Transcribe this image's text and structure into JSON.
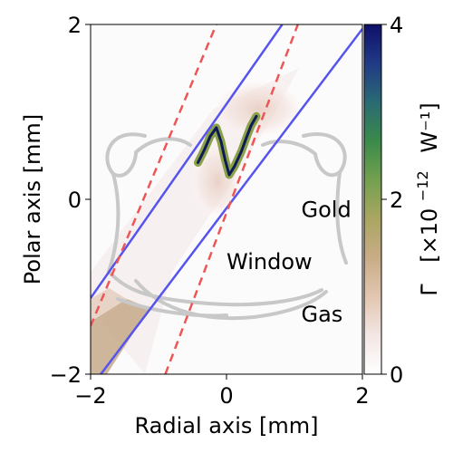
{
  "chart_data": {
    "type": "heatmap",
    "xlabel": "Radial axis   [mm]",
    "ylabel": "Polar axis   [mm]",
    "xlim": [
      -2,
      2
    ],
    "ylim": [
      -2,
      2
    ],
    "xticks": [
      {
        "value": -2,
        "label": "−2"
      },
      {
        "value": 0,
        "label": "0"
      },
      {
        "value": 2,
        "label": "2"
      }
    ],
    "yticks": [
      {
        "value": -2,
        "label": "−2"
      },
      {
        "value": 0,
        "label": "0"
      },
      {
        "value": 2,
        "label": "2"
      }
    ],
    "grid": false,
    "colorbar": {
      "symbol": "Γ̄",
      "unit_text": "[×10",
      "unit_exp": "−12",
      "unit_tail": "W⁻¹]",
      "range": [
        0,
        4
      ],
      "ticks": [
        {
          "value": 0,
          "label": "0"
        },
        {
          "value": 2,
          "label": "2"
        },
        {
          "value": 4,
          "label": "4"
        }
      ],
      "colormap": [
        "#ffffff",
        "#f3e6e4",
        "#e2c6b0",
        "#c9ac86",
        "#aaa662",
        "#72a04e",
        "#3a8a4a",
        "#2a6a73",
        "#203a86",
        "#0f1068"
      ]
    },
    "region_labels": [
      {
        "text": "Gold",
        "x": 1.1,
        "y": -0.2
      },
      {
        "text": "Window",
        "x": 0.0,
        "y": -0.8
      },
      {
        "text": "Gas",
        "x": 1.1,
        "y": -1.4
      }
    ],
    "boundary_lines": [
      {
        "style": "solid",
        "color": "#5555ee",
        "points": [
          [
            -2,
            -1.13
          ],
          [
            0.82,
            2.0
          ]
        ]
      },
      {
        "style": "solid",
        "color": "#5555ee",
        "points": [
          [
            -1.85,
            -2.0
          ],
          [
            2.0,
            1.95
          ]
        ]
      },
      {
        "style": "dashed",
        "color": "#ee5555",
        "points": [
          [
            -2,
            -1.45
          ],
          [
            -0.15,
            2.0
          ]
        ]
      },
      {
        "style": "dashed",
        "color": "#ee5555",
        "points": [
          [
            -0.9,
            -2.0
          ],
          [
            1.05,
            2.0
          ]
        ]
      }
    ],
    "outline_color": "#c8c8c8",
    "high_intensity_curve": [
      [
        -0.42,
        0.42
      ],
      [
        -0.33,
        0.56
      ],
      [
        -0.24,
        0.72
      ],
      [
        -0.15,
        0.82
      ],
      [
        -0.08,
        0.66
      ],
      [
        -0.02,
        0.45
      ],
      [
        0.04,
        0.28
      ],
      [
        0.12,
        0.38
      ],
      [
        0.22,
        0.55
      ],
      [
        0.3,
        0.72
      ],
      [
        0.36,
        0.84
      ],
      [
        0.44,
        0.95
      ]
    ]
  }
}
